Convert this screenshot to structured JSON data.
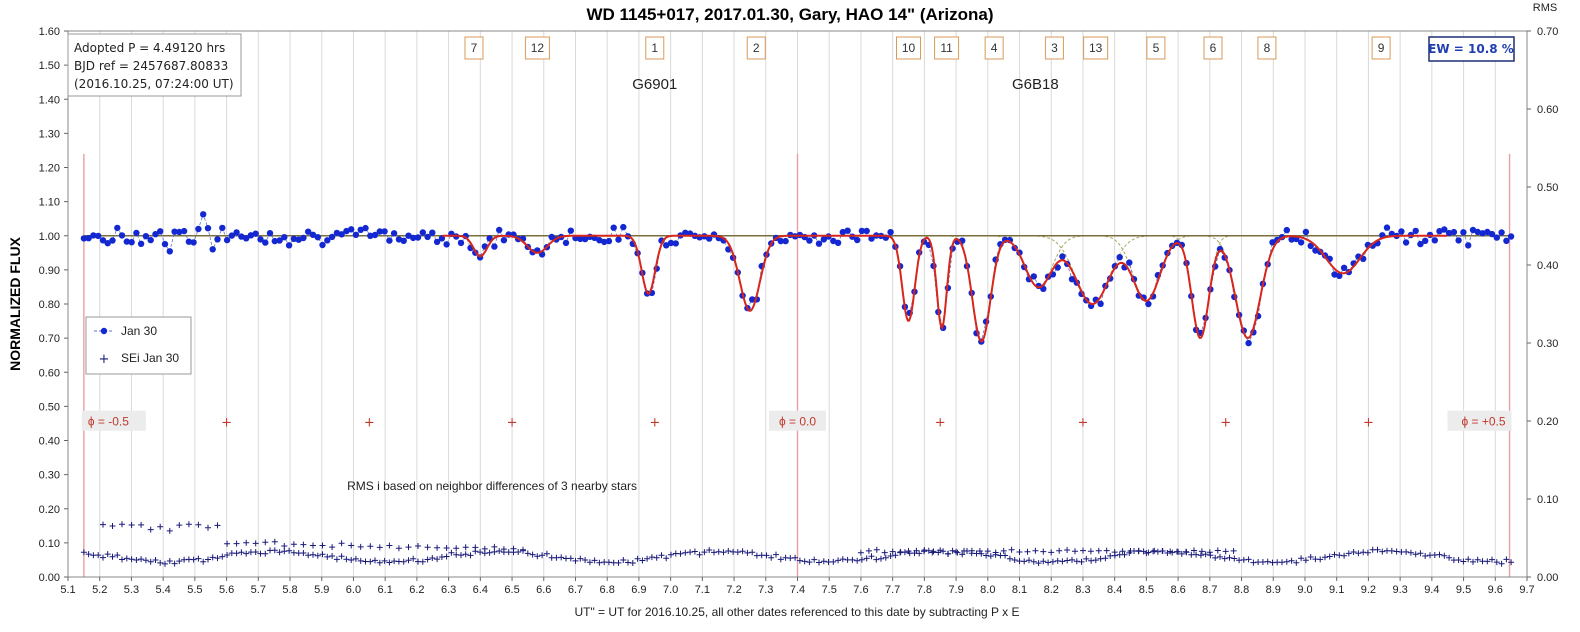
{
  "colors": {
    "data_point": "#1428d2",
    "data_line": "#5a72c8",
    "model": "#d7261b",
    "component": "#a7a86a",
    "baseline": "#7a6f3c",
    "phase_line": "#e8a0a0",
    "phase_text": "#c0392b",
    "err_marker": "#1a1a7a",
    "grid": "#d9d9d9",
    "dip_box_border": "#d99a5b",
    "ew_text": "#1f3fb0"
  },
  "chart_data": {
    "type": "scatter",
    "title": "WD 1145+017, 2017.01.30, Gary, HAO 14\" (Arizona)",
    "xlabel": "UT\" = UT for 2016.10.25, all other dates referenced  to this date by subtracting  P x E",
    "ylabel": "NORMALIZED FLUX",
    "y2label": "RMS",
    "xlim": [
      5.1,
      9.7
    ],
    "ylim": [
      0.0,
      1.6
    ],
    "y2lim": [
      0.0,
      0.7
    ],
    "x_ticks": [
      "5.1",
      "5.2",
      "5.3",
      "5.4",
      "5.5",
      "5.6",
      "5.7",
      "5.8",
      "5.9",
      "6.0",
      "6.1",
      "6.2",
      "6.3",
      "6.4",
      "6.5",
      "6.6",
      "6.7",
      "6.8",
      "6.9",
      "7.0",
      "7.1",
      "7.2",
      "7.3",
      "7.4",
      "7.5",
      "7.6",
      "7.7",
      "7.8",
      "7.9",
      "8.0",
      "8.1",
      "8.2",
      "8.3",
      "8.4",
      "8.5",
      "8.6",
      "8.7",
      "8.8",
      "8.9",
      "9.0",
      "9.1",
      "9.2",
      "9.3",
      "9.4",
      "9.5",
      "9.6",
      "9.7"
    ],
    "y_ticks": [
      "0.00",
      "0.10",
      "0.20",
      "0.30",
      "0.40",
      "0.50",
      "0.60",
      "0.70",
      "0.80",
      "0.90",
      "1.00",
      "1.10",
      "1.20",
      "1.30",
      "1.40",
      "1.50",
      "1.60"
    ],
    "y2_ticks": [
      "0.00",
      "0.10",
      "0.20",
      "0.30",
      "0.40",
      "0.50",
      "0.60",
      "0.70"
    ],
    "grid": "vertical",
    "legend_position": "left-middle",
    "series": [
      {
        "name": "Jan 30",
        "style": "dashed-line-with-dots",
        "color": "#1428d2",
        "axis": "left"
      },
      {
        "name": "SEi Jan 30",
        "style": "plus-markers",
        "color": "#1a1a7a",
        "axis": "left"
      }
    ],
    "info_box": {
      "line1": "Adopted P = 4.49120  hrs",
      "line2": "BJD ref = 2457687.80833",
      "line3": "(2016.10.25,  07:24:00  UT)"
    },
    "ew_label": "EW = 10.8  %",
    "object_labels": [
      {
        "text": "G6901",
        "x": 6.95,
        "y": 1.43
      },
      {
        "text": "G6B18",
        "x": 8.15,
        "y": 1.43
      }
    ],
    "dip_labels": [
      {
        "text": "7",
        "x": 6.38
      },
      {
        "text": "12",
        "x": 6.58
      },
      {
        "text": "1",
        "x": 6.95
      },
      {
        "text": "2",
        "x": 7.27
      },
      {
        "text": "10",
        "x": 7.75
      },
      {
        "text": "11",
        "x": 7.87
      },
      {
        "text": "4",
        "x": 8.02
      },
      {
        "text": "3",
        "x": 8.21
      },
      {
        "text": "13",
        "x": 8.34
      },
      {
        "text": "5",
        "x": 8.53
      },
      {
        "text": "6",
        "x": 8.71
      },
      {
        "text": "8",
        "x": 8.88
      },
      {
        "text": "9",
        "x": 9.24
      }
    ],
    "phase_labels": [
      {
        "text": "ϕ = -0.5",
        "x": 5.15
      },
      {
        "text": "ϕ = 0.0",
        "x": 7.4
      },
      {
        "text": "ϕ = +0.5",
        "x": 9.645
      }
    ],
    "phase_ticks_x": [
      5.6,
      6.05,
      6.5,
      6.95,
      7.85,
      8.3,
      8.75,
      9.2
    ],
    "phase_marker_y": 0.455,
    "rms_note": "RMS i based on neighbor differences of 3 nearby stars",
    "rms_note_x": 5.98,
    "rms_note_y": 0.255,
    "baseline": 1.0,
    "dips": [
      {
        "center": 6.4,
        "depth": 0.06,
        "width": 0.03
      },
      {
        "center": 6.58,
        "depth": 0.05,
        "width": 0.045
      },
      {
        "center": 6.93,
        "depth": 0.17,
        "width": 0.03
      },
      {
        "center": 7.25,
        "depth": 0.22,
        "width": 0.045
      },
      {
        "center": 7.75,
        "depth": 0.25,
        "width": 0.028
      },
      {
        "center": 7.855,
        "depth": 0.27,
        "width": 0.022
      },
      {
        "center": 7.98,
        "depth": 0.31,
        "width": 0.04
      },
      {
        "center": 8.16,
        "depth": 0.15,
        "width": 0.06
      },
      {
        "center": 8.33,
        "depth": 0.2,
        "width": 0.075
      },
      {
        "center": 8.5,
        "depth": 0.19,
        "width": 0.06
      },
      {
        "center": 8.67,
        "depth": 0.3,
        "width": 0.038
      },
      {
        "center": 8.82,
        "depth": 0.3,
        "width": 0.055
      },
      {
        "center": 9.12,
        "depth": 0.11,
        "width": 0.075
      }
    ],
    "obs_x_range": [
      5.15,
      9.65
    ],
    "obs_n": 300,
    "rms_hi_range": [
      5.2,
      5.6
    ],
    "rms_hi_level": 0.15,
    "rms_lo_level": 0.06
  }
}
